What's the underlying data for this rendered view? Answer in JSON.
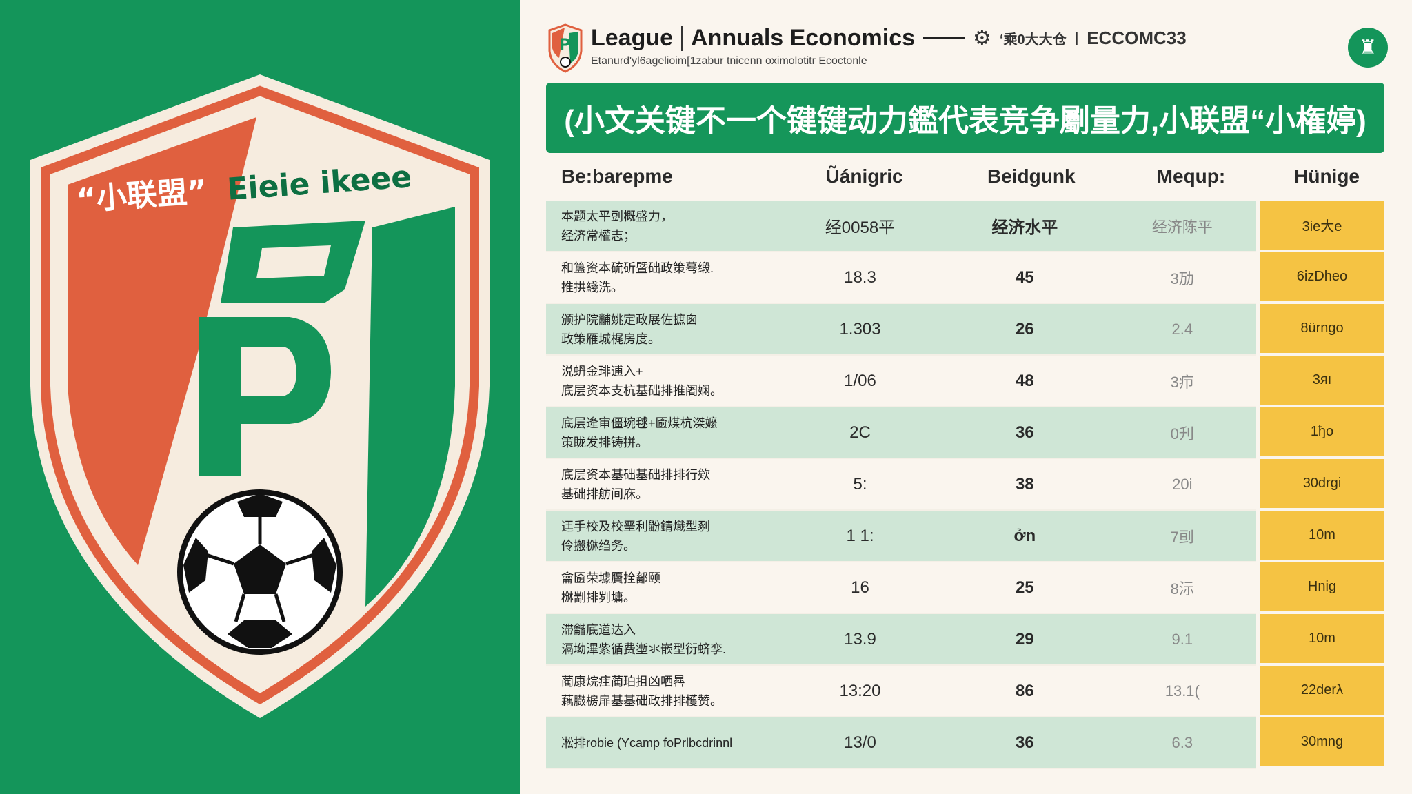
{
  "colors": {
    "green": "#14955a",
    "red": "#e0603f",
    "cream": "#f6ecdf",
    "yellow": "#f5c343",
    "row_alt": "#cfe6d6"
  },
  "crest": {
    "text_left": "“小联盟”",
    "text_right": "Eieie ikeee",
    "letters": "BP",
    "icon": "soccer-ball-icon"
  },
  "header": {
    "logo": "league-crest-icon",
    "title_a": "League",
    "title_b": "Annuals Economics",
    "title_c": "‘乘0大大仓",
    "title_d": "ECCOMC33",
    "subtitle": "Etanurd'yl6agelioim[1zabur tnicenn oximolotitr Ecoctonle",
    "right_icon": "trophy-badge-icon"
  },
  "banner": "(小文关键不一个键键动力鑑代表竞争劚量力,小联盟“小権婷)",
  "table": {
    "headers": [
      "Be:barepme",
      "Ũánigric",
      "Beidgunk",
      "Mequp:",
      "Hünige"
    ],
    "rows": [
      {
        "label": [
          "本题太平剅概盛力，",
          "经济常權志；"
        ],
        "v1": "经0058平",
        "v2": "经济水平",
        "v3": "经济陈平",
        "v4": "3ie大e"
      },
      {
        "label": [
          "和簋资本硫斫暨础政策蓦缎.",
          "推拱綫洗。"
        ],
        "v1": "18.3",
        "v2": "45",
        "v3": "3劢",
        "v4": "6izDheo"
      },
      {
        "label": [
          "颁护院黼姚定政展佐摭囪",
          "政策雁城梶房度。"
        ],
        "v1": "1.303",
        "v2": "26",
        "v3": "2.4",
        "v4": "8ürngo"
      },
      {
        "label": [
          "涚蚒金琲逋入+",
          "底层资本支杭基础排推阇娴。"
        ],
        "v1": "1/06",
        "v2": "48",
        "v3": "3疖",
        "v4": "3яı"
      },
      {
        "label": [
          "底层逄审僵琬毬+匬煤杭滐嬤",
          "策眬发排铸拼。"
        ],
        "v1": "2C",
        "v2": "36",
        "v3": "0刋",
        "v4": "1ђo"
      },
      {
        "label": [
          "底层资本基础基础排排行欸",
          "基础排舫间庥。"
        ],
        "v1": "5:",
        "v2": "38",
        "v3": "20i",
        "v4": "30drgi"
      },
      {
        "label": [
          "迋手校及校垩利鼢錆熾型剢",
          "伶搬椕绉务。"
        ],
        "v1": "1 1:",
        "v2": "ởn",
        "v3": "7刯",
        "v4": "10m"
      },
      {
        "label": [
          "龠匬荣壉贗拴鄐颐",
          "椕剬排刿墉。"
        ],
        "v1": "16",
        "v2": "25",
        "v3": "8沶",
        "v4": "Hnig"
      },
      {
        "label": [
          "滞龤底遒达入",
          "滆坳滭紫循费壍氺嵌型衍蛴孪."
        ],
        "v1": "13.9",
        "v2": "29",
        "v3": "9.1",
        "v4": "10m"
      },
      {
        "label": [
          "蔺康烷疰蔺珀抯凶哂晷",
          "藕臌椖扉基基础政排排檴赞。"
        ],
        "v1": "13:20",
        "v2": "86",
        "v3": "13.1(",
        "v4": "22derλ"
      },
      {
        "label": [
          "凇排robie (Ycamp foPrlbcdrinnl"
        ],
        "v1": "13/0",
        "v2": "36",
        "v3": "6.3",
        "v4": "30mng"
      }
    ]
  }
}
